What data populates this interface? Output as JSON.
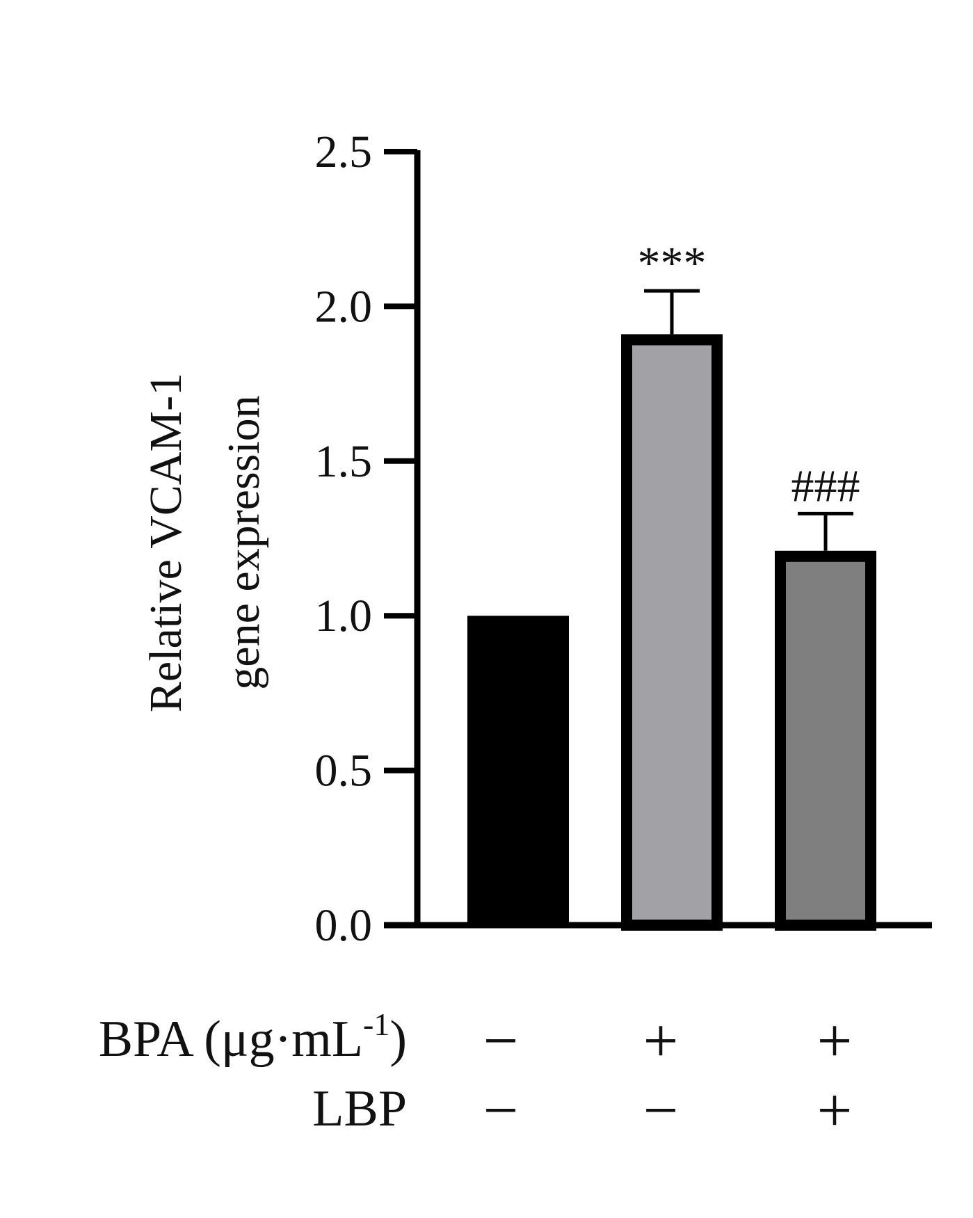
{
  "chart_data": {
    "type": "bar",
    "title": "",
    "ylabel_lines": [
      "Relative VCAM-1",
      "gene expression"
    ],
    "ylim": [
      0,
      2.5
    ],
    "yticks": [
      "0.0",
      "0.5",
      "1.0",
      "1.5",
      "2.0",
      "2.5"
    ],
    "categories": [
      "BPA − / LBP −",
      "BPA + / LBP −",
      "BPA + / LBP +"
    ],
    "values": [
      1.0,
      1.91,
      1.21
    ],
    "errors": [
      0,
      0.14,
      0.12
    ],
    "annotations": [
      "",
      "***",
      "###"
    ],
    "colors": [
      "#000000",
      "#a2a1a6",
      "#7f7f7f"
    ],
    "grid": false,
    "legend": "none",
    "conditions": {
      "bpa": {
        "label": "BPA (μg·mL",
        "sup": "-1",
        "tail": ")",
        "values": [
          "−",
          "+",
          "+"
        ]
      },
      "lbp": {
        "label": "LBP",
        "values": [
          "−",
          "−",
          "+"
        ]
      }
    }
  }
}
